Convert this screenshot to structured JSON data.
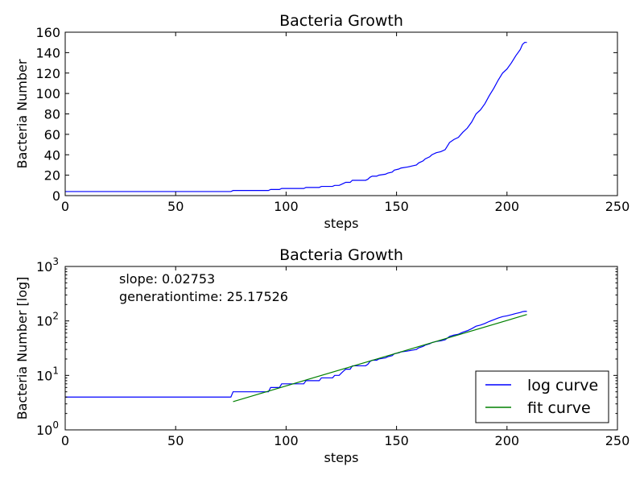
{
  "chart_data": [
    {
      "type": "line",
      "title": "Bacteria Growth",
      "xlabel": "steps",
      "ylabel": "Bacteria Number",
      "xlim": [
        0,
        250
      ],
      "ylim": [
        0,
        160
      ],
      "xticks": [
        0,
        50,
        100,
        150,
        200,
        250
      ],
      "yticks": [
        0,
        20,
        40,
        60,
        80,
        100,
        120,
        140,
        160
      ],
      "yscale": "linear",
      "grid": false,
      "series": [
        {
          "color": "#0000ff",
          "x": [
            0,
            75,
            76,
            92,
            93,
            97,
            98,
            108,
            109,
            115,
            116,
            121,
            122,
            124,
            125,
            126,
            127,
            129,
            130,
            136,
            137,
            138,
            139,
            141,
            142,
            145,
            146,
            148,
            149,
            151,
            152,
            155,
            157,
            159,
            160,
            162,
            163,
            165,
            166,
            168,
            170,
            172,
            174,
            176,
            178,
            180,
            182,
            184,
            186,
            188,
            190,
            192,
            194,
            196,
            198,
            200,
            202,
            204,
            206,
            207,
            208,
            209
          ],
          "y": [
            4,
            4,
            5,
            5,
            6,
            6,
            7,
            7,
            8,
            8,
            9,
            9,
            10,
            10,
            11,
            12,
            13,
            13,
            15,
            15,
            16,
            18,
            19,
            19,
            20,
            21,
            22,
            23,
            25,
            26,
            27,
            28,
            29,
            30,
            32,
            34,
            36,
            38,
            40,
            42,
            43,
            45,
            52,
            55,
            57,
            62,
            66,
            72,
            80,
            84,
            90,
            98,
            105,
            113,
            120,
            124,
            130,
            137,
            143,
            148,
            150,
            150
          ]
        }
      ]
    },
    {
      "type": "line",
      "title": "Bacteria Growth",
      "xlabel": "steps",
      "ylabel": "Bacteria Number [log]",
      "xlim": [
        0,
        250
      ],
      "ylim": [
        1,
        1000
      ],
      "xticks": [
        0,
        50,
        100,
        150,
        200,
        250
      ],
      "yticks": [
        1,
        10,
        100,
        1000
      ],
      "ytick_labels": [
        {
          "base": "10",
          "exp": "0"
        },
        {
          "base": "10",
          "exp": "1"
        },
        {
          "base": "10",
          "exp": "2"
        },
        {
          "base": "10",
          "exp": "3"
        }
      ],
      "yscale": "log",
      "grid": false,
      "legend_position": "lower-right",
      "annotations": [
        "slope: 0.02753",
        "generationtime: 25.17526"
      ],
      "series": [
        {
          "name": "log curve",
          "color": "#0000ff",
          "x": [
            0,
            75,
            76,
            92,
            93,
            97,
            98,
            108,
            109,
            115,
            116,
            121,
            122,
            124,
            125,
            126,
            127,
            129,
            130,
            136,
            137,
            138,
            139,
            141,
            142,
            145,
            146,
            148,
            149,
            151,
            152,
            155,
            157,
            159,
            160,
            162,
            163,
            165,
            166,
            168,
            170,
            172,
            174,
            176,
            178,
            180,
            182,
            184,
            186,
            188,
            190,
            192,
            194,
            196,
            198,
            200,
            202,
            204,
            206,
            207,
            208,
            209
          ],
          "y": [
            4,
            4,
            5,
            5,
            6,
            6,
            7,
            7,
            8,
            8,
            9,
            9,
            10,
            10,
            11,
            12,
            13,
            13,
            15,
            15,
            16,
            18,
            19,
            19,
            20,
            21,
            22,
            23,
            25,
            26,
            27,
            28,
            29,
            30,
            32,
            34,
            36,
            38,
            40,
            42,
            43,
            45,
            52,
            55,
            57,
            62,
            66,
            72,
            80,
            84,
            90,
            98,
            105,
            113,
            120,
            124,
            130,
            137,
            143,
            148,
            150,
            150
          ]
        },
        {
          "name": "fit curve",
          "color": "#008000",
          "x": [
            76,
            209
          ],
          "y": [
            3.3,
            131
          ]
        }
      ]
    }
  ]
}
